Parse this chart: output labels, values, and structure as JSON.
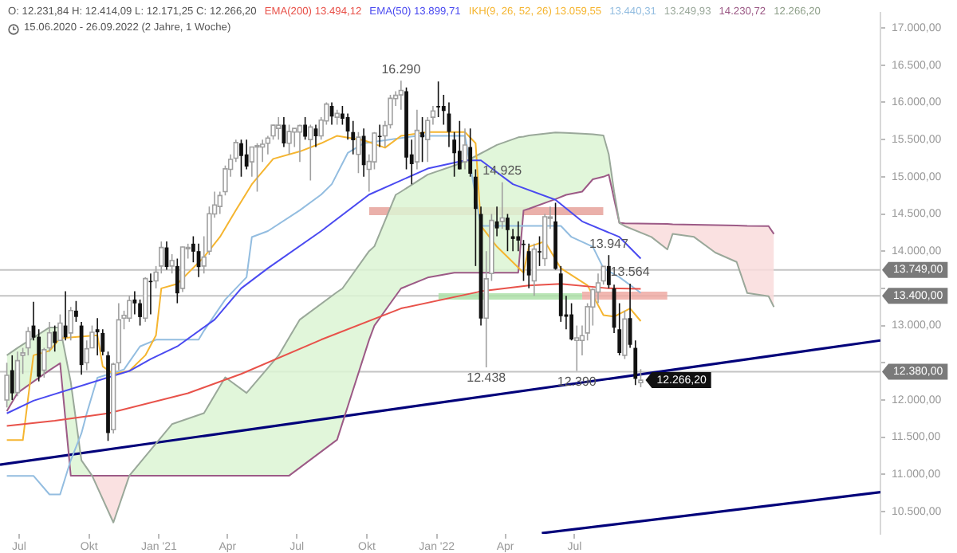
{
  "chart_data": {
    "type": "candlestick",
    "title": "O: 12.231,84  H: 12.414,09  L: 12.171,25  C: 12.266,20",
    "subtitle": "15.06.2020 - 26.09.2022  (2 Jahre, 1 Woche)",
    "legend": "top",
    "grid": false,
    "xlim": [
      "2020-06-06",
      "2023-08-07"
    ],
    "xticks": [
      {
        "value": "2020-07-01",
        "label": "Jul"
      },
      {
        "value": "2020-10-01",
        "label": "Okt"
      },
      {
        "value": "2021-01-01",
        "label": "Jan '21"
      },
      {
        "value": "2021-04-01",
        "label": "Apr"
      },
      {
        "value": "2021-07-01",
        "label": "Jul"
      },
      {
        "value": "2021-10-01",
        "label": "Okt"
      },
      {
        "value": "2022-01-01",
        "label": "Jan '22"
      },
      {
        "value": "2022-04-01",
        "label": "Apr"
      },
      {
        "value": "2022-07-01",
        "label": "Jul"
      }
    ],
    "ylim": [
      10200,
      17200
    ],
    "yticks": [
      {
        "value": 10500,
        "label": "10.500,00"
      },
      {
        "value": 11000,
        "label": "11.000,00"
      },
      {
        "value": 11500,
        "label": "11.500,00"
      },
      {
        "value": 12000,
        "label": "12.000,00"
      },
      {
        "value": 12500,
        "label": null
      },
      {
        "value": 13000,
        "label": "13.000,00"
      },
      {
        "value": 13500,
        "label": null
      },
      {
        "value": 14000,
        "label": "14.000,00"
      },
      {
        "value": 14500,
        "label": "14.500,00"
      },
      {
        "value": 15000,
        "label": "15.000,00"
      },
      {
        "value": 15500,
        "label": "15.500,00"
      },
      {
        "value": 16000,
        "label": "16.000,00"
      },
      {
        "value": 16500,
        "label": "16.500,00"
      },
      {
        "value": 17000,
        "label": "17.000,00"
      }
    ],
    "x": [
      "2020-06-15",
      "2020-06-22",
      "2020-06-29",
      "2020-07-06",
      "2020-07-13",
      "2020-07-20",
      "2020-07-27",
      "2020-08-03",
      "2020-08-10",
      "2020-08-17",
      "2020-08-24",
      "2020-08-31",
      "2020-09-07",
      "2020-09-14",
      "2020-09-21",
      "2020-09-28",
      "2020-10-05",
      "2020-10-12",
      "2020-10-19",
      "2020-10-26",
      "2020-11-02",
      "2020-11-09",
      "2020-11-16",
      "2020-11-23",
      "2020-11-30",
      "2020-12-07",
      "2020-12-14",
      "2020-12-21",
      "2020-12-28",
      "2021-01-04",
      "2021-01-11",
      "2021-01-18",
      "2021-01-25",
      "2021-02-01",
      "2021-02-08",
      "2021-02-15",
      "2021-02-22",
      "2021-03-01",
      "2021-03-08",
      "2021-03-15",
      "2021-03-22",
      "2021-03-29",
      "2021-04-05",
      "2021-04-12",
      "2021-04-19",
      "2021-04-26",
      "2021-05-03",
      "2021-05-10",
      "2021-05-17",
      "2021-05-24",
      "2021-05-31",
      "2021-06-07",
      "2021-06-14",
      "2021-06-21",
      "2021-06-28",
      "2021-07-05",
      "2021-07-12",
      "2021-07-19",
      "2021-07-26",
      "2021-08-02",
      "2021-08-09",
      "2021-08-16",
      "2021-08-23",
      "2021-08-30",
      "2021-09-06",
      "2021-09-13",
      "2021-09-20",
      "2021-09-27",
      "2021-10-04",
      "2021-10-11",
      "2021-10-18",
      "2021-10-25",
      "2021-11-01",
      "2021-11-08",
      "2021-11-15",
      "2021-11-22",
      "2021-11-29",
      "2021-12-06",
      "2021-12-13",
      "2021-12-20",
      "2021-12-27",
      "2022-01-03",
      "2022-01-10",
      "2022-01-17",
      "2022-01-24",
      "2022-01-31",
      "2022-02-07",
      "2022-02-14",
      "2022-02-21",
      "2022-02-28",
      "2022-03-07",
      "2022-03-14",
      "2022-03-21",
      "2022-03-28",
      "2022-04-04",
      "2022-04-11",
      "2022-04-18",
      "2022-04-25",
      "2022-05-02",
      "2022-05-09",
      "2022-05-16",
      "2022-05-23",
      "2022-05-30",
      "2022-06-06",
      "2022-06-13",
      "2022-06-20",
      "2022-06-27",
      "2022-07-04",
      "2022-07-11",
      "2022-07-18",
      "2022-07-25",
      "2022-08-01",
      "2022-08-08",
      "2022-08-15",
      "2022-08-22",
      "2022-08-29",
      "2022-09-05",
      "2022-09-12",
      "2022-09-19",
      "2022-09-26"
    ],
    "ohlc": [
      [
        12000,
        12500,
        11900,
        12331
      ],
      [
        12400,
        12600,
        12000,
        12089
      ],
      [
        12100,
        12650,
        12050,
        12528
      ],
      [
        12600,
        12700,
        12350,
        12633
      ],
      [
        12700,
        12980,
        12600,
        12920
      ],
      [
        13000,
        13320,
        12800,
        12838
      ],
      [
        12850,
        12950,
        12250,
        12313
      ],
      [
        12400,
        12700,
        12300,
        12675
      ],
      [
        12700,
        13050,
        12650,
        12901
      ],
      [
        12920,
        13000,
        12650,
        12765
      ],
      [
        12800,
        13150,
        12800,
        13033
      ],
      [
        13000,
        13460,
        12800,
        12842
      ],
      [
        12900,
        13250,
        12800,
        13202
      ],
      [
        13200,
        13330,
        13050,
        13116
      ],
      [
        13000,
        13050,
        12340,
        12469
      ],
      [
        12500,
        12800,
        12400,
        12689
      ],
      [
        12700,
        13000,
        12700,
        12909
      ],
      [
        12950,
        13100,
        12600,
        12909
      ],
      [
        12900,
        12950,
        12600,
        12646
      ],
      [
        12600,
        12650,
        11450,
        11556
      ],
      [
        11600,
        12500,
        11550,
        12480
      ],
      [
        12500,
        13300,
        12400,
        13077
      ],
      [
        13100,
        13200,
        12950,
        13137
      ],
      [
        13100,
        13400,
        13050,
        13335
      ],
      [
        13350,
        13460,
        13150,
        13298
      ],
      [
        13300,
        13350,
        13000,
        13114
      ],
      [
        13100,
        13650,
        13050,
        13631
      ],
      [
        13600,
        13700,
        13150,
        13587
      ],
      [
        13600,
        13800,
        13500,
        13719
      ],
      [
        13800,
        14130,
        13700,
        14049
      ],
      [
        14050,
        14130,
        13750,
        13787
      ],
      [
        13800,
        13960,
        13700,
        13873
      ],
      [
        13800,
        13900,
        13300,
        13433
      ],
      [
        13500,
        14060,
        13450,
        14056
      ],
      [
        14050,
        14100,
        13900,
        14050
      ],
      [
        14100,
        14200,
        13850,
        13993
      ],
      [
        14000,
        14100,
        13650,
        13786
      ],
      [
        13800,
        14200,
        13700,
        13920
      ],
      [
        14000,
        14600,
        13950,
        14502
      ],
      [
        14500,
        14800,
        14450,
        14621
      ],
      [
        14600,
        14800,
        14500,
        14748
      ],
      [
        14800,
        15150,
        14750,
        15107
      ],
      [
        15100,
        15300,
        15000,
        15234
      ],
      [
        15250,
        15500,
        15200,
        15460
      ],
      [
        15450,
        15500,
        15000,
        15280
      ],
      [
        15300,
        15500,
        15100,
        15136
      ],
      [
        15200,
        15400,
        15000,
        15400
      ],
      [
        15400,
        15450,
        14800,
        15417
      ],
      [
        15400,
        15500,
        15200,
        15437
      ],
      [
        15450,
        15550,
        15300,
        15520
      ],
      [
        15550,
        15700,
        15500,
        15693
      ],
      [
        15650,
        15800,
        15500,
        15693
      ],
      [
        15700,
        15800,
        15400,
        15448
      ],
      [
        15450,
        15700,
        15300,
        15607
      ],
      [
        15600,
        15650,
        15400,
        15650
      ],
      [
        15600,
        15700,
        15200,
        15688
      ],
      [
        15700,
        15800,
        15500,
        15540
      ],
      [
        15500,
        15700,
        14950,
        15669
      ],
      [
        15650,
        15700,
        15400,
        15544
      ],
      [
        15550,
        15800,
        15500,
        15761
      ],
      [
        15750,
        16000,
        15700,
        15977
      ],
      [
        15950,
        16000,
        15700,
        15808
      ],
      [
        15800,
        15900,
        15700,
        15851
      ],
      [
        15850,
        15950,
        15700,
        15781
      ],
      [
        15800,
        15850,
        15500,
        15609
      ],
      [
        15600,
        15750,
        15300,
        15490
      ],
      [
        15300,
        15600,
        15050,
        15532
      ],
      [
        15550,
        15650,
        15000,
        15156
      ],
      [
        15100,
        15300,
        14800,
        15206
      ],
      [
        15200,
        15600,
        15100,
        15587
      ],
      [
        15550,
        15700,
        15400,
        15543
      ],
      [
        15550,
        15750,
        15400,
        15688
      ],
      [
        15700,
        16100,
        15650,
        16054
      ],
      [
        16050,
        16150,
        15950,
        16094
      ],
      [
        16100,
        16290,
        15900,
        16160
      ],
      [
        16150,
        16200,
        15100,
        15257
      ],
      [
        15300,
        15500,
        14900,
        15170
      ],
      [
        15200,
        15900,
        15100,
        15623
      ],
      [
        15600,
        15800,
        15200,
        15531
      ],
      [
        15500,
        15800,
        15200,
        15756
      ],
      [
        15800,
        15950,
        15700,
        15885
      ],
      [
        15950,
        16280,
        15800,
        15948
      ],
      [
        15950,
        16100,
        15700,
        15883
      ],
      [
        15850,
        16000,
        15400,
        15604
      ],
      [
        15500,
        15600,
        15000,
        15318
      ],
      [
        15350,
        15750,
        15100,
        15100
      ],
      [
        15200,
        15650,
        15100,
        15426
      ],
      [
        15400,
        15650,
        15000,
        15042
      ],
      [
        15000,
        15100,
        13800,
        14567
      ],
      [
        14500,
        14600,
        13000,
        13094
      ],
      [
        13100,
        14000,
        12438,
        13628
      ],
      [
        13700,
        14500,
        13600,
        14413
      ],
      [
        14400,
        14600,
        14200,
        14306
      ],
      [
        14400,
        14925,
        14300,
        14446
      ],
      [
        14450,
        14500,
        14000,
        14283
      ],
      [
        14200,
        14300,
        14000,
        14164
      ],
      [
        14200,
        14400,
        14000,
        14142
      ],
      [
        14100,
        14150,
        13600,
        14098
      ],
      [
        14000,
        14100,
        13500,
        13674
      ],
      [
        13600,
        14100,
        13400,
        14027
      ],
      [
        14000,
        14200,
        13800,
        13982
      ],
      [
        13900,
        14500,
        13800,
        14462
      ],
      [
        14450,
        14600,
        14300,
        14460
      ],
      [
        14400,
        14650,
        13750,
        13762
      ],
      [
        13700,
        13800,
        13050,
        13126
      ],
      [
        13150,
        13400,
        12950,
        13118
      ],
      [
        13150,
        13300,
        12800,
        12813
      ],
      [
        12800,
        13000,
        12390,
        12834
      ],
      [
        12800,
        13000,
        12600,
        12864
      ],
      [
        12900,
        13300,
        12800,
        13254
      ],
      [
        13250,
        13500,
        13000,
        13484
      ],
      [
        13450,
        13700,
        13300,
        13573
      ],
      [
        13600,
        13800,
        13550,
        13795
      ],
      [
        13800,
        13947,
        13500,
        13544
      ],
      [
        13500,
        13550,
        12900,
        12971
      ],
      [
        12950,
        13300,
        12600,
        12631
      ],
      [
        12600,
        13200,
        12550,
        13088
      ],
      [
        13100,
        13564,
        12700,
        12741
      ],
      [
        12700,
        12800,
        12200,
        12284
      ],
      [
        12231.84,
        12414.09,
        12171.25,
        12266.2
      ]
    ],
    "series": [
      {
        "type": "area",
        "color": "#dcf5d4",
        "x": [
          "2020-06-15",
          "2020-06-29",
          "2020-08-10",
          "2020-08-24",
          "2020-09-07",
          "2020-09-21",
          "2020-10-05"
        ],
        "values": [
          null,
          null,
          null,
          null,
          null,
          null,
          null
        ],
        "lower": [
          11850,
          12094,
          12400,
          12493,
          10983,
          10983,
          10983
        ],
        "upper": [
          12600,
          12700,
          12975,
          12975,
          12240,
          11190,
          10983
        ]
      },
      {
        "type": "area",
        "color": "#dcf5d4",
        "x": [
          "2020-11-23",
          "2021-01-18",
          "2021-03-01",
          "2021-03-29",
          "2021-04-26",
          "2021-06-07",
          "2021-06-21",
          "2021-07-05",
          "2021-08-23",
          "2021-08-30",
          "2021-10-04",
          "2021-10-11",
          "2021-11-08",
          "2021-11-15",
          "2021-12-20",
          "2022-01-24",
          "2022-02-14",
          "2022-03-21",
          "2022-04-18",
          "2022-04-25",
          "2022-05-02",
          "2022-06-06",
          "2022-06-20",
          "2022-07-11",
          "2022-07-25",
          "2022-08-08",
          "2022-08-15",
          "2022-08-22",
          "2022-08-29"
        ],
        "values": [
          null,
          null,
          null,
          null,
          null,
          null,
          null,
          null,
          null,
          null,
          null,
          null,
          null,
          null,
          null,
          null,
          null,
          null,
          null,
          null,
          null,
          null,
          null,
          null,
          null,
          null,
          null,
          null,
          null
        ],
        "lower": [
          10983,
          10983,
          10983,
          10983,
          10983,
          10983,
          10983,
          11090,
          11465,
          11690,
          12807,
          13000,
          13400,
          13499,
          13645,
          13710,
          13710,
          13710,
          13710,
          14547,
          14570,
          14700,
          14757,
          14800,
          14966,
          15000,
          15029,
          14700,
          14379
        ],
        "upper": [
          10983,
          11675,
          11822,
          12304,
          12094,
          12597,
          12840,
          13080,
          13450,
          13499,
          14000,
          14065,
          14757,
          14800,
          15029,
          15150,
          15239,
          15428,
          15530,
          15540,
          15554,
          15596,
          15590,
          15580,
          15570,
          15554,
          15300,
          14800,
          14379
        ]
      },
      {
        "type": "area",
        "color": "#f9dcdc",
        "x": [
          "2020-10-05",
          "2020-11-02",
          "2020-11-23"
        ],
        "values": [
          null,
          null,
          null
        ],
        "lower": [
          10983,
          10353,
          10983
        ],
        "upper": [
          10983,
          10983,
          10983
        ]
      },
      {
        "type": "area",
        "color": "#f9dcdc",
        "x": [
          "2022-08-29",
          "2022-09-05",
          "2022-10-10",
          "2022-10-31",
          "2022-11-07",
          "2022-12-05",
          "2023-01-02",
          "2023-01-30",
          "2023-02-13",
          "2023-03-13",
          "2023-03-20"
        ],
        "values": [
          null,
          null,
          null,
          null,
          null,
          null,
          null,
          null,
          null,
          null,
          null
        ],
        "lower": [
          14379,
          14337,
          14191,
          14023,
          14233,
          14191,
          13981,
          13855,
          13436,
          13394,
          13249.93
        ],
        "upper": [
          14379,
          14375,
          14370,
          14365,
          14360,
          14355,
          14350,
          14345,
          14340,
          14337,
          14230.72
        ]
      },
      {
        "type": "area",
        "color": "#e6a29b",
        "x": [
          "2021-10-04",
          "2022-08-08"
        ],
        "values": [
          null,
          null
        ],
        "lower": [
          14485,
          14485
        ],
        "upper": [
          14590,
          14590
        ]
      },
      {
        "type": "area",
        "color": "#ade0a8",
        "x": [
          "2022-01-03",
          "2022-07-11"
        ],
        "values": [
          null,
          null
        ],
        "lower": [
          13350,
          13350
        ],
        "upper": [
          13435,
          13435
        ]
      },
      {
        "type": "area",
        "color": "#eeaaa3",
        "x": [
          "2022-07-11",
          "2022-10-31"
        ],
        "values": [
          null,
          null
        ],
        "lower": [
          13350,
          13350
        ],
        "upper": [
          13456,
          13456
        ]
      },
      {
        "type": "line",
        "name": "EMA(200) 13.494,12",
        "color": "#e8524a",
        "x": [
          "2020-06-15",
          "2020-08-17",
          "2020-10-26",
          "2021-02-08",
          "2021-04-19",
          "2021-08-02",
          "2021-11-15",
          "2022-02-28",
          "2022-05-02",
          "2022-06-13",
          "2022-08-15",
          "2022-09-26"
        ],
        "values": [
          11650,
          11720,
          11820,
          12090,
          12350,
          12810,
          13230,
          13460,
          13540,
          13560,
          13500,
          13494.12
        ]
      },
      {
        "type": "line",
        "name": "EMA(50) 13.899,71",
        "color": "#4a4af0",
        "x": [
          "2020-06-15",
          "2020-07-20",
          "2020-10-19",
          "2020-11-23",
          "2020-12-21",
          "2021-01-25",
          "2021-03-15",
          "2021-04-19",
          "2021-05-24",
          "2021-08-02",
          "2021-10-04",
          "2021-12-20",
          "2022-02-07",
          "2022-02-28",
          "2022-04-11",
          "2022-06-06",
          "2022-07-11",
          "2022-08-29",
          "2022-09-26"
        ],
        "values": [
          11820,
          11990,
          12280,
          12390,
          12550,
          12720,
          13080,
          13500,
          13770,
          14270,
          14760,
          15110,
          15220,
          15220,
          14900,
          14690,
          14400,
          14190,
          13899.71
        ]
      },
      {
        "type": "line",
        "name": "IKH(9, 26, 52, 26) 13.059,55",
        "color": "#f5b530",
        "x": [
          "2020-06-15",
          "2020-07-06",
          "2020-07-20",
          "2020-08-10",
          "2020-08-24",
          "2020-10-12",
          "2020-10-19",
          "2020-11-02",
          "2020-11-23",
          "2020-12-14",
          "2020-12-28",
          "2021-01-04",
          "2021-01-25",
          "2021-03-01",
          "2021-03-22",
          "2021-04-12",
          "2021-05-03",
          "2021-05-31",
          "2021-07-05",
          "2021-08-02",
          "2021-08-23",
          "2021-09-27",
          "2021-10-25",
          "2021-11-15",
          "2021-12-20",
          "2022-02-07",
          "2022-02-21",
          "2022-02-28",
          "2022-03-21",
          "2022-04-25",
          "2022-05-02",
          "2022-05-23",
          "2022-06-13",
          "2022-07-18",
          "2022-08-08",
          "2022-08-22",
          "2022-09-12",
          "2022-09-26"
        ],
        "values": [
          11460,
          11460,
          12600,
          12660,
          12830,
          12870,
          12450,
          12350,
          12390,
          12600,
          12870,
          13500,
          13560,
          13920,
          14190,
          14550,
          14900,
          15240,
          15340,
          15450,
          15550,
          15490,
          15390,
          15550,
          15600,
          15600,
          15450,
          14340,
          14060,
          13710,
          14060,
          14130,
          13770,
          13540,
          13140,
          13120,
          13230,
          13059.55
        ]
      },
      {
        "type": "line",
        "name": "13.440,31",
        "color": "#93bde0",
        "x": [
          "2020-06-15",
          "2020-07-20",
          "2020-08-10",
          "2020-08-24",
          "2020-09-07",
          "2020-09-21",
          "2020-09-28",
          "2020-10-12",
          "2020-11-16",
          "2020-12-07",
          "2020-12-28",
          "2021-02-22",
          "2021-03-01",
          "2021-03-29",
          "2021-04-26",
          "2021-05-03",
          "2021-05-24",
          "2021-07-05",
          "2021-08-02",
          "2021-08-16",
          "2021-09-06",
          "2021-09-27",
          "2021-12-06",
          "2022-02-07",
          "2022-02-28",
          "2022-05-02",
          "2022-06-13",
          "2022-06-27",
          "2022-07-25",
          "2022-08-08",
          "2022-08-29",
          "2022-09-26"
        ],
        "values": [
          10980,
          10980,
          10730,
          10730,
          11190,
          11550,
          11820,
          12300,
          12410,
          12720,
          12810,
          12810,
          12930,
          13350,
          13650,
          14190,
          14270,
          14550,
          14760,
          14900,
          15320,
          15450,
          15550,
          15550,
          14340,
          14340,
          14340,
          14190,
          14060,
          13770,
          13650,
          13440.31
        ]
      },
      {
        "type": "line",
        "name": "13.249,93",
        "color": "#9aa89a",
        "x": [
          "2020-06-15",
          "2020-06-29",
          "2020-08-10",
          "2020-08-24",
          "2020-09-07",
          "2020-09-21",
          "2020-10-05",
          "2020-11-02",
          "2020-11-23",
          "2021-01-18",
          "2021-03-01",
          "2021-03-29",
          "2021-04-26",
          "2021-06-07",
          "2021-06-21",
          "2021-07-05",
          "2021-08-23",
          "2021-08-30",
          "2021-10-04",
          "2021-10-11",
          "2021-11-08",
          "2021-11-15",
          "2021-12-20",
          "2022-01-24",
          "2022-02-14",
          "2022-03-21",
          "2022-04-18",
          "2022-04-25",
          "2022-05-02",
          "2022-06-06",
          "2022-06-20",
          "2022-07-11",
          "2022-07-25",
          "2022-08-08",
          "2022-08-15",
          "2022-08-22",
          "2022-08-29",
          "2022-09-05",
          "2022-10-10",
          "2022-10-31",
          "2022-11-07",
          "2022-12-05",
          "2023-01-02",
          "2023-01-30",
          "2023-02-13",
          "2023-03-13",
          "2023-03-20"
        ],
        "values": [
          12600,
          12700,
          12975,
          12975,
          12240,
          11190,
          10983,
          10353,
          10983,
          11675,
          11822,
          12304,
          12094,
          12597,
          12840,
          13080,
          13450,
          13499,
          14000,
          14065,
          14757,
          14800,
          15029,
          15150,
          15239,
          15428,
          15530,
          15540,
          15554,
          15596,
          15590,
          15580,
          15570,
          15554,
          15300,
          14800,
          14379,
          14337,
          14191,
          14023,
          14233,
          14191,
          13981,
          13855,
          13436,
          13394,
          13249.93
        ]
      },
      {
        "type": "line",
        "name": "14.230,72",
        "color": "#9c5a86",
        "x": [
          "2020-06-15",
          "2020-06-29",
          "2020-08-10",
          "2020-08-24",
          "2020-09-07",
          "2020-09-21",
          "2020-10-05",
          "2020-11-02",
          "2020-11-23",
          "2021-01-18",
          "2021-03-01",
          "2021-03-29",
          "2021-04-26",
          "2021-06-07",
          "2021-06-21",
          "2021-07-05",
          "2021-08-23",
          "2021-08-30",
          "2021-10-04",
          "2021-10-11",
          "2021-11-08",
          "2021-11-15",
          "2021-12-20",
          "2022-01-24",
          "2022-02-14",
          "2022-03-21",
          "2022-04-18",
          "2022-04-25",
          "2022-05-02",
          "2022-06-06",
          "2022-06-20",
          "2022-07-11",
          "2022-07-25",
          "2022-08-08",
          "2022-08-15",
          "2022-08-22",
          "2022-08-29",
          "2022-09-05",
          "2022-10-10",
          "2022-10-31",
          "2022-11-07",
          "2022-12-05",
          "2023-01-02",
          "2023-01-30",
          "2023-02-13",
          "2023-03-13",
          "2023-03-20"
        ],
        "values": [
          11850,
          12094,
          12400,
          12493,
          10983,
          10983,
          10983,
          10983,
          10983,
          10983,
          10983,
          10983,
          10983,
          10983,
          10983,
          11090,
          11465,
          11690,
          12807,
          13000,
          13400,
          13499,
          13645,
          13710,
          13710,
          13710,
          13710,
          14547,
          14570,
          14700,
          14757,
          14800,
          14966,
          15000,
          15029,
          14700,
          14379,
          14375,
          14370,
          14365,
          14360,
          14355,
          14350,
          14345,
          14340,
          14337,
          14230.72
        ]
      },
      {
        "type": "line",
        "color": "#00007a",
        "x": [
          "2020-06-06",
          "2023-08-07"
        ],
        "values": [
          11130,
          12800
        ]
      },
      {
        "type": "line",
        "color": "#00007a",
        "x": [
          "2022-05-19",
          "2023-08-07"
        ],
        "values": [
          10210,
          10760
        ]
      }
    ],
    "ref_lines": [
      {
        "axis": "y",
        "value": 13749,
        "label": "13.749,00",
        "color": "#c4c4c4"
      },
      {
        "axis": "y",
        "value": 13400,
        "label": "13.400,00",
        "color": "#c4c4c4"
      },
      {
        "axis": "y",
        "value": 12380,
        "label": "12.380,00",
        "color": "#c4c4c4"
      }
    ],
    "annotations": [
      {
        "text": "16.290",
        "x": "2021-11-15",
        "y": 16290
      },
      {
        "text": "14.925",
        "x": "2022-03-28",
        "y": 14925
      },
      {
        "text": "13.947",
        "x": "2022-08-15",
        "y": 13947
      },
      {
        "text": "13.564",
        "x": "2022-09-12",
        "y": 13564
      },
      {
        "text": "12.438",
        "x": "2022-03-07",
        "y": 12438
      },
      {
        "text": "12.390",
        "x": "2022-07-04",
        "y": 12390
      },
      {
        "text": "12.266,20",
        "x": "2022-09-26",
        "y": 12266.2
      },
      "12.266,20"
    ]
  }
}
